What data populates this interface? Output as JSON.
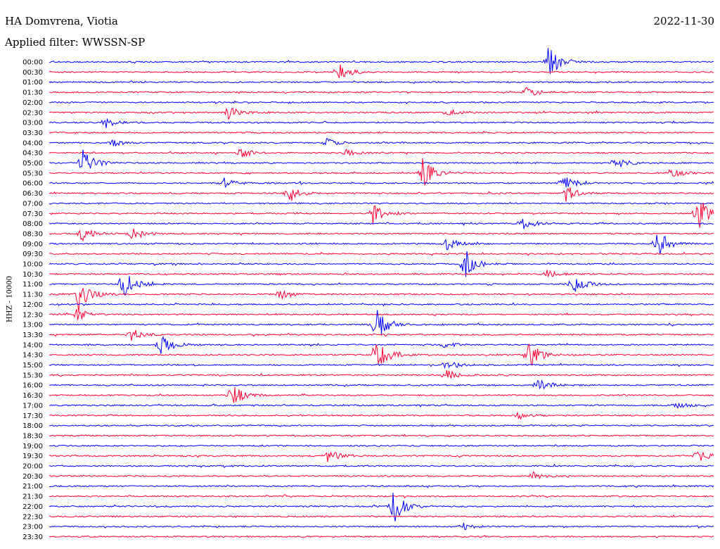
{
  "header": {
    "station": "HA Domvrena, Viotia",
    "date": "2022-11-30",
    "filter": "Applied filter: WWSSN-SP"
  },
  "colors": {
    "blue": "#0000ff",
    "red": "#ff0033"
  },
  "chart_data": {
    "type": "line",
    "title": "HA Domvrena, Viotia",
    "ylabel": "HHZ - 10000",
    "xlabel": "",
    "row_labels": [
      "00:00",
      "00:30",
      "01:00",
      "01:30",
      "02:00",
      "02:30",
      "03:00",
      "03:30",
      "04:00",
      "04:30",
      "05:00",
      "05:30",
      "06:00",
      "06:30",
      "07:00",
      "07:30",
      "08:00",
      "08:30",
      "09:00",
      "09:30",
      "10:00",
      "10:30",
      "11:00",
      "11:30",
      "12:00",
      "12:30",
      "13:00",
      "13:30",
      "14:00",
      "14:30",
      "15:00",
      "15:30",
      "16:00",
      "16:30",
      "17:00",
      "17:30",
      "18:00",
      "18:30",
      "19:00",
      "19:30",
      "20:00",
      "20:30",
      "21:00",
      "21:30",
      "22:00",
      "22:30",
      "23:00",
      "23:30"
    ],
    "row_colors": [
      "blue",
      "red"
    ],
    "events": [
      {
        "row": 0,
        "minute": 22.5,
        "amp": 1.0
      },
      {
        "row": 1,
        "minute": 13.0,
        "amp": 0.5
      },
      {
        "row": 3,
        "minute": 21.5,
        "amp": 0.3
      },
      {
        "row": 5,
        "minute": 8.0,
        "amp": 0.4
      },
      {
        "row": 5,
        "minute": 18.0,
        "amp": 0.2
      },
      {
        "row": 6,
        "minute": 2.5,
        "amp": 0.3
      },
      {
        "row": 8,
        "minute": 2.8,
        "amp": 0.2
      },
      {
        "row": 8,
        "minute": 12.5,
        "amp": 0.2
      },
      {
        "row": 9,
        "minute": 8.6,
        "amp": 0.3
      },
      {
        "row": 9,
        "minute": 13.3,
        "amp": 0.2
      },
      {
        "row": 10,
        "minute": 1.5,
        "amp": 0.8
      },
      {
        "row": 10,
        "minute": 25.5,
        "amp": 0.4
      },
      {
        "row": 11,
        "minute": 16.8,
        "amp": 0.9
      },
      {
        "row": 11,
        "minute": 28.0,
        "amp": 0.3
      },
      {
        "row": 12,
        "minute": 7.8,
        "amp": 0.3
      },
      {
        "row": 12,
        "minute": 23.2,
        "amp": 0.4
      },
      {
        "row": 13,
        "minute": 10.8,
        "amp": 0.5
      },
      {
        "row": 13,
        "minute": 23.3,
        "amp": 0.4
      },
      {
        "row": 15,
        "minute": 14.6,
        "amp": 0.6
      },
      {
        "row": 15,
        "minute": 29.2,
        "amp": 1.0
      },
      {
        "row": 16,
        "minute": 21.3,
        "amp": 0.4
      },
      {
        "row": 17,
        "minute": 1.4,
        "amp": 0.4
      },
      {
        "row": 17,
        "minute": 3.7,
        "amp": 0.3
      },
      {
        "row": 18,
        "minute": 17.9,
        "amp": 0.4
      },
      {
        "row": 18,
        "minute": 27.4,
        "amp": 0.8
      },
      {
        "row": 20,
        "minute": 18.7,
        "amp": 0.8
      },
      {
        "row": 21,
        "minute": 22.4,
        "amp": 0.2
      },
      {
        "row": 22,
        "minute": 3.3,
        "amp": 0.8
      },
      {
        "row": 22,
        "minute": 23.6,
        "amp": 0.5
      },
      {
        "row": 23,
        "minute": 1.3,
        "amp": 1.0
      },
      {
        "row": 23,
        "minute": 10.4,
        "amp": 0.3
      },
      {
        "row": 25,
        "minute": 1.2,
        "amp": 0.4
      },
      {
        "row": 26,
        "minute": 14.7,
        "amp": 1.0
      },
      {
        "row": 27,
        "minute": 3.7,
        "amp": 0.3
      },
      {
        "row": 28,
        "minute": 5.0,
        "amp": 0.6
      },
      {
        "row": 28,
        "minute": 17.8,
        "amp": 0.2
      },
      {
        "row": 29,
        "minute": 14.7,
        "amp": 1.0
      },
      {
        "row": 29,
        "minute": 21.6,
        "amp": 0.9
      },
      {
        "row": 30,
        "minute": 17.9,
        "amp": 0.3
      },
      {
        "row": 31,
        "minute": 17.9,
        "amp": 0.3
      },
      {
        "row": 32,
        "minute": 22.0,
        "amp": 0.3
      },
      {
        "row": 33,
        "minute": 8.2,
        "amp": 0.6
      },
      {
        "row": 34,
        "minute": 28.2,
        "amp": 0.2
      },
      {
        "row": 35,
        "minute": 21.1,
        "amp": 0.2
      },
      {
        "row": 39,
        "minute": 12.5,
        "amp": 0.4
      },
      {
        "row": 39,
        "minute": 29.2,
        "amp": 0.4
      },
      {
        "row": 41,
        "minute": 21.8,
        "amp": 0.2
      },
      {
        "row": 44,
        "minute": 15.5,
        "amp": 0.9
      },
      {
        "row": 46,
        "minute": 18.6,
        "amp": 0.2
      }
    ]
  }
}
